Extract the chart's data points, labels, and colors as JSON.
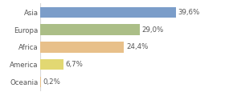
{
  "categories": [
    "Asia",
    "Europa",
    "Africa",
    "America",
    "Oceania"
  ],
  "values": [
    39.6,
    29.0,
    24.4,
    6.7,
    0.2
  ],
  "labels": [
    "39,6%",
    "29,0%",
    "24,4%",
    "6,7%",
    "0,2%"
  ],
  "bar_colors": [
    "#7b9dc9",
    "#abbe87",
    "#e8c08a",
    "#e2d872",
    "#e8c08a"
  ],
  "background_color": "#ffffff",
  "xlim": [
    0,
    46
  ],
  "bar_height": 0.62,
  "label_fontsize": 6.2,
  "tick_fontsize": 6.2,
  "grid_color": "#d8d8d8",
  "text_color": "#555555"
}
